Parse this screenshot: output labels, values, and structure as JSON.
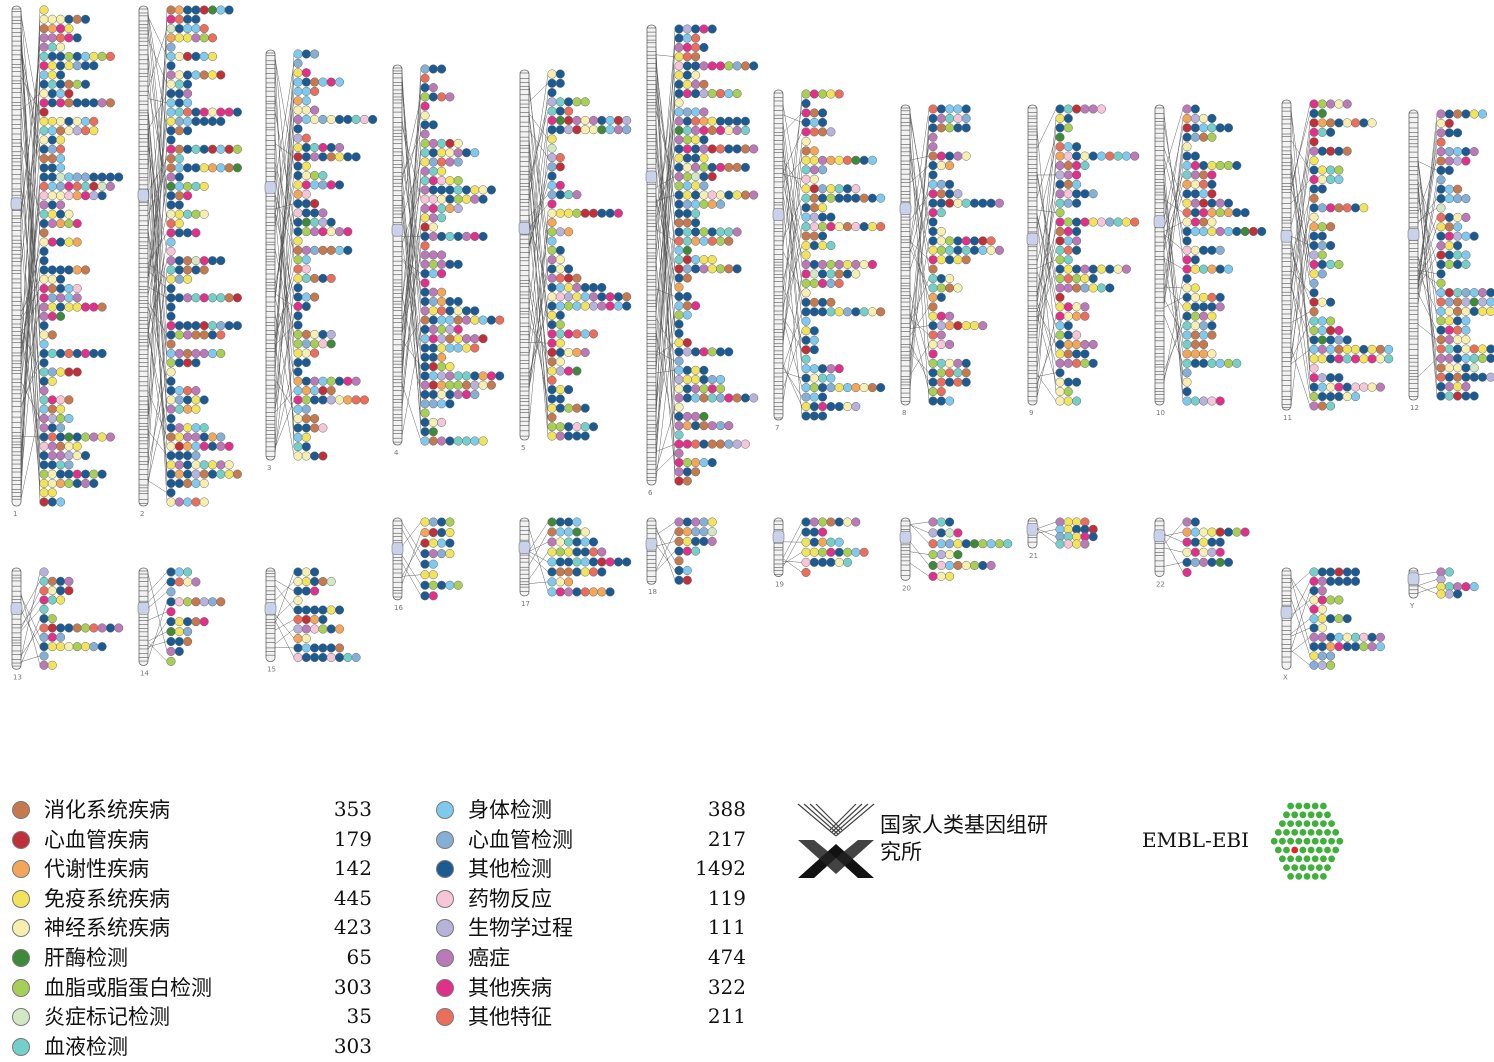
{
  "legend_left": [
    {
      "label": "消化系统疾病",
      "count": "353",
      "color": "#c47a4e"
    },
    {
      "label": "心血管疾病",
      "count": "179",
      "color": "#c0303a"
    },
    {
      "label": "代谢性疾病",
      "count": "142",
      "color": "#f2a65a"
    },
    {
      "label": "免疫系统疾病",
      "count": "445",
      "color": "#f2e35c"
    },
    {
      "label": "神经系统疾病",
      "count": "423",
      "color": "#f6efb0"
    },
    {
      "label": "肝酶检测",
      "count": "65",
      "color": "#3f8a3a"
    },
    {
      "label": "血脂或脂蛋白检测",
      "count": "303",
      "color": "#a8cf55"
    },
    {
      "label": "炎症标记检测",
      "count": "35",
      "color": "#d2e8c4"
    },
    {
      "label": "血液检测",
      "count": "303",
      "color": "#74cfc8"
    }
  ],
  "legend_right": [
    {
      "label": "身体检测",
      "count": "388",
      "color": "#7fc9ec"
    },
    {
      "label": "心血管检测",
      "count": "217",
      "color": "#86afd6"
    },
    {
      "label": "其他检测",
      "count": "1492",
      "color": "#1c5b92"
    },
    {
      "label": "药物反应",
      "count": "119",
      "color": "#f5c6d8"
    },
    {
      "label": "生物学过程",
      "count": "111",
      "color": "#b6b2dc"
    },
    {
      "label": "癌症",
      "count": "474",
      "color": "#b97ab7"
    },
    {
      "label": "其他疾病",
      "count": "322",
      "color": "#e0318a"
    },
    {
      "label": "其他特征",
      "count": "211",
      "color": "#ea6e5c"
    }
  ],
  "logos": {
    "nhgri_text": "国家人类基因组研究所",
    "ebi_text": "EMBL-EBI"
  },
  "chart_data": {
    "type": "diagram",
    "chromosomes": [
      {
        "id": "1",
        "size": 1.0,
        "row": 1
      },
      {
        "id": "2",
        "size": 1.0,
        "row": 1
      },
      {
        "id": "3",
        "size": 0.82,
        "row": 1
      },
      {
        "id": "4",
        "size": 0.76,
        "row": 1
      },
      {
        "id": "5",
        "size": 0.74,
        "row": 1
      },
      {
        "id": "6",
        "size": 0.92,
        "row": 1
      },
      {
        "id": "7",
        "size": 0.66,
        "row": 1
      },
      {
        "id": "8",
        "size": 0.6,
        "row": 1
      },
      {
        "id": "9",
        "size": 0.6,
        "row": 1
      },
      {
        "id": "10",
        "size": 0.6,
        "row": 1
      },
      {
        "id": "11",
        "size": 0.62,
        "row": 1
      },
      {
        "id": "12",
        "size": 0.58,
        "row": 1
      },
      {
        "id": "13",
        "size": 0.52,
        "row": 2
      },
      {
        "id": "14",
        "size": 0.5,
        "row": 2
      },
      {
        "id": "15",
        "size": 0.48,
        "row": 2
      },
      {
        "id": "16",
        "size": 0.42,
        "row": 2
      },
      {
        "id": "17",
        "size": 0.4,
        "row": 2
      },
      {
        "id": "18",
        "size": 0.34,
        "row": 2
      },
      {
        "id": "19",
        "size": 0.3,
        "row": 2
      },
      {
        "id": "20",
        "size": 0.32,
        "row": 2
      },
      {
        "id": "21",
        "size": 0.14,
        "row": 2
      },
      {
        "id": "22",
        "size": 0.3,
        "row": 2
      },
      {
        "id": "X",
        "size": 0.52,
        "row": 2
      },
      {
        "id": "Y",
        "size": 0.1,
        "row": 2
      }
    ]
  }
}
